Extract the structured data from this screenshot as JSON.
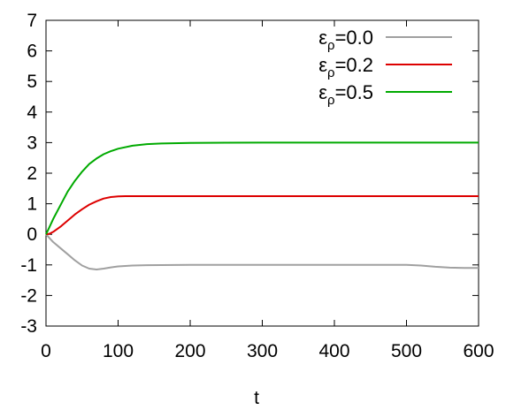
{
  "chart_data": {
    "type": "line",
    "title": "",
    "xlabel": "t",
    "ylabel": "",
    "xlim": [
      0,
      600
    ],
    "ylim": [
      -3,
      7
    ],
    "xticks": [
      0,
      100,
      200,
      300,
      400,
      500,
      600
    ],
    "yticks": [
      -3,
      -2,
      -1,
      0,
      1,
      2,
      3,
      4,
      5,
      6,
      7
    ],
    "xtick_labels": [
      "0",
      "100",
      "200",
      "300",
      "400",
      "500",
      "600"
    ],
    "ytick_labels": [
      "-3",
      "-2",
      "-1",
      "0",
      "1",
      "2",
      "3",
      "4",
      "5",
      "6",
      "7"
    ],
    "grid": false,
    "legend_position": "top-right",
    "series": [
      {
        "name_main": "ε",
        "name_sub": "ρ",
        "name_tail": "=0.0",
        "color": "#a0a0a0",
        "x": [
          0,
          10,
          20,
          30,
          40,
          50,
          60,
          70,
          80,
          90,
          100,
          120,
          140,
          200,
          300,
          400,
          500,
          520,
          540,
          560,
          580,
          600
        ],
        "y": [
          0,
          -0.25,
          -0.45,
          -0.65,
          -0.85,
          -1.02,
          -1.12,
          -1.15,
          -1.12,
          -1.08,
          -1.05,
          -1.02,
          -1.01,
          -1.0,
          -1.0,
          -1.0,
          -1.0,
          -1.02,
          -1.06,
          -1.09,
          -1.1,
          -1.1
        ]
      },
      {
        "name_main": "ε",
        "name_sub": "ρ",
        "name_tail": "=0.2",
        "color": "#dd0000",
        "x": [
          0,
          5,
          10,
          20,
          30,
          40,
          50,
          60,
          70,
          80,
          90,
          100,
          110,
          120,
          140,
          200,
          300,
          400,
          500,
          600
        ],
        "y": [
          0,
          0.02,
          0.08,
          0.25,
          0.45,
          0.65,
          0.82,
          0.97,
          1.08,
          1.17,
          1.22,
          1.24,
          1.25,
          1.25,
          1.25,
          1.25,
          1.25,
          1.25,
          1.25,
          1.25
        ]
      },
      {
        "name_main": "ε",
        "name_sub": "ρ",
        "name_tail": "=0.5",
        "color": "#00aa00",
        "x": [
          0,
          5,
          10,
          20,
          30,
          40,
          50,
          60,
          70,
          80,
          90,
          100,
          120,
          140,
          160,
          200,
          300,
          400,
          500,
          600
        ],
        "y": [
          0,
          0.25,
          0.5,
          0.95,
          1.4,
          1.75,
          2.05,
          2.3,
          2.48,
          2.62,
          2.72,
          2.8,
          2.9,
          2.95,
          2.97,
          2.99,
          3.0,
          3.0,
          3.0,
          3.0
        ]
      }
    ]
  }
}
